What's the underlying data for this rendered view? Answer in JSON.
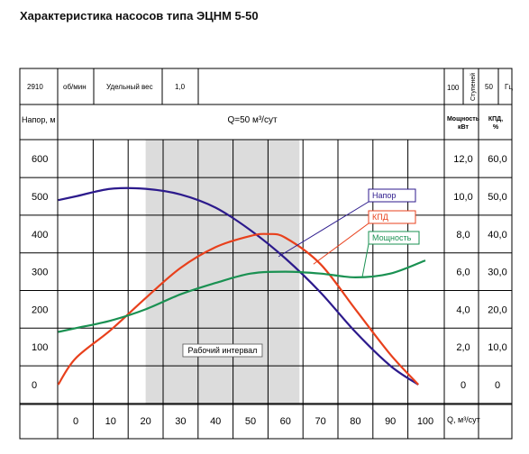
{
  "page": {
    "title": "Характеристика насосов типа ЭЦНМ 5-50"
  },
  "header_row": {
    "rpm_value": "2910",
    "rpm_unit": "об/мин",
    "specific_weight_label": "Удельный вес",
    "specific_weight_value": "1,0",
    "stages_value": "100",
    "stages_label": "Ступеней",
    "freq_value": "50",
    "freq_unit": "Гц"
  },
  "left_header": "Напор, м",
  "flow_label": "Q=50 м³/сут",
  "power_header": "Мощность кВт",
  "eff_header": "КПД, %",
  "working_interval_label": "Рабочий интервал",
  "chart_data": {
    "type": "line",
    "x": [
      0,
      10,
      20,
      30,
      40,
      50,
      60,
      70,
      80,
      90,
      100
    ],
    "x_tick_labels": [
      "0",
      "10",
      "20",
      "30",
      "40",
      "50",
      "60",
      "70",
      "80",
      "90",
      "100"
    ],
    "xlabel": "Q, м³/сут",
    "xlim": [
      -5,
      105
    ],
    "ylabel": "Напор, м",
    "ylim": [
      0,
      600
    ],
    "y_ticks_left": [
      "0",
      "100",
      "200",
      "300",
      "400",
      "500",
      "600"
    ],
    "y_ticks_power": [
      "0",
      "2,0",
      "4,0",
      "6,0",
      "8,0",
      "10,0",
      "12,0"
    ],
    "y_ticks_eff": [
      "0",
      "10,0",
      "20,0",
      "30,0",
      "40,0",
      "50,0",
      "60,0"
    ],
    "working_range": [
      20,
      64
    ],
    "grid": true,
    "series": [
      {
        "name": "Напор",
        "unit": "м",
        "color": "#2c1a8c",
        "x": [
          -5,
          0,
          10,
          20,
          30,
          40,
          50,
          60,
          70,
          80,
          90,
          98
        ],
        "y": [
          490,
          500,
          520,
          520,
          505,
          470,
          410,
          335,
          245,
          140,
          50,
          0
        ]
      },
      {
        "name": "КПД",
        "unit": "%",
        "color": "#e8401c",
        "x": [
          -5,
          0,
          10,
          20,
          30,
          40,
          50,
          55,
          60,
          70,
          80,
          90,
          98
        ],
        "y": [
          0,
          7,
          14.5,
          23,
          31,
          36.5,
          39.5,
          40,
          39,
          32,
          20,
          8,
          0
        ]
      },
      {
        "name": "Мощность",
        "unit": "кВт",
        "color": "#1a9152",
        "x": [
          -5,
          0,
          10,
          20,
          30,
          40,
          50,
          60,
          70,
          80,
          90,
          100
        ],
        "y": [
          2.8,
          3.0,
          3.4,
          4.0,
          4.8,
          5.4,
          5.9,
          6.0,
          5.9,
          5.7,
          5.9,
          6.6
        ]
      }
    ]
  }
}
